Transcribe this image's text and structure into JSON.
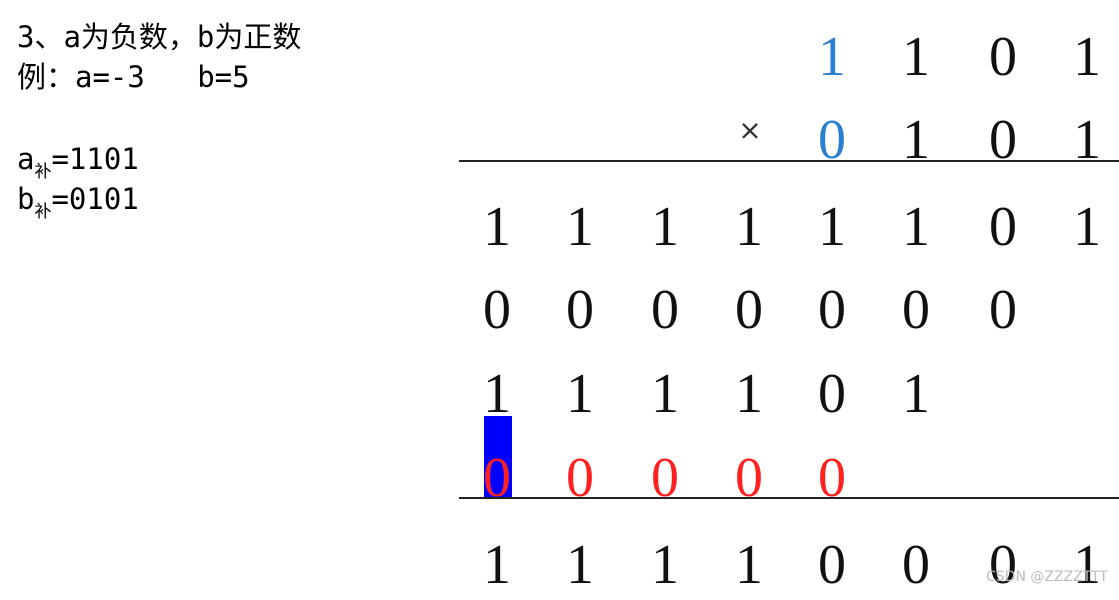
{
  "text": {
    "line1": "3、a为负数，b为正数",
    "line2": "例：a=-3   b=5",
    "a_label": "a",
    "a_sub": "补",
    "a_value": "=1101",
    "b_label": "b",
    "b_sub": "补",
    "b_value": "=0101"
  },
  "multiplication": {
    "operator": "×",
    "rows": [
      {
        "start_col": 4,
        "digits": [
          "1",
          "1",
          "0",
          "1"
        ],
        "colors": [
          "#2a7fd0",
          "#111",
          "#111",
          "#111"
        ]
      },
      {
        "start_col": 4,
        "digits": [
          "0",
          "1",
          "0",
          "1"
        ],
        "colors": [
          "#2a7fd0",
          "#111",
          "#111",
          "#111"
        ]
      },
      {
        "start_col": 0,
        "digits": [
          "1",
          "1",
          "1",
          "1",
          "1",
          "1",
          "0",
          "1"
        ]
      },
      {
        "start_col": 0,
        "digits": [
          "0",
          "0",
          "0",
          "0",
          "0",
          "0",
          "0"
        ]
      },
      {
        "start_col": 0,
        "digits": [
          "1",
          "1",
          "1",
          "1",
          "0",
          "1"
        ]
      },
      {
        "start_col": 0,
        "digits": [
          "0",
          "0",
          "0",
          "0",
          "0"
        ],
        "colors": [
          "#ff2020",
          "#ff2020",
          "#ff2020",
          "#ff2020",
          "#ff2020"
        ]
      },
      {
        "start_col": 0,
        "digits": [
          "1",
          "1",
          "1",
          "1",
          "0",
          "0",
          "0",
          "1"
        ]
      }
    ]
  },
  "colors": {
    "highlight": "#0000ff",
    "blue_digit": "#2a7fd0",
    "red_digit": "#ff2020"
  },
  "watermark": "CSDN @ZZZZTTT"
}
